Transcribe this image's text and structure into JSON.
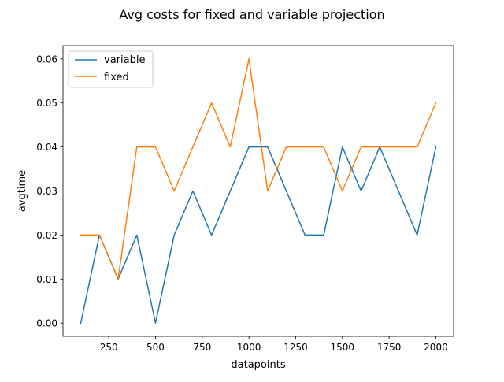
{
  "chart_data": {
    "type": "line",
    "title": "Avg costs for fixed and variable projection",
    "xlabel": "datapoints",
    "ylabel": "avgtime",
    "xlim": [
      5,
      2095
    ],
    "ylim": [
      -0.003,
      0.063
    ],
    "xticks": [
      250,
      500,
      750,
      1000,
      1250,
      1500,
      1750,
      2000
    ],
    "xtick_labels": [
      "250",
      "500",
      "750",
      "1000",
      "1250",
      "1500",
      "1750",
      "2000"
    ],
    "yticks": [
      0.0,
      0.01,
      0.02,
      0.03,
      0.04,
      0.05,
      0.06
    ],
    "ytick_labels": [
      "0.00",
      "0.01",
      "0.02",
      "0.03",
      "0.04",
      "0.05",
      "0.06"
    ],
    "grid": false,
    "legend_position": "top-left",
    "x": [
      100,
      200,
      300,
      400,
      500,
      600,
      700,
      800,
      900,
      1000,
      1100,
      1200,
      1300,
      1400,
      1500,
      1600,
      1700,
      1800,
      1900,
      2000
    ],
    "series": [
      {
        "name": "variable",
        "color": "#1f77b4",
        "values": [
          0.0,
          0.02,
          0.01,
          0.02,
          0.0,
          0.02,
          0.03,
          0.02,
          0.03,
          0.04,
          0.04,
          0.03,
          0.02,
          0.02,
          0.04,
          0.03,
          0.04,
          0.03,
          0.02,
          0.04
        ]
      },
      {
        "name": "fixed",
        "color": "#ff7f0e",
        "values": [
          0.02,
          0.02,
          0.01,
          0.04,
          0.04,
          0.03,
          0.04,
          0.05,
          0.04,
          0.06,
          0.03,
          0.04,
          0.04,
          0.04,
          0.03,
          0.04,
          0.04,
          0.04,
          0.04,
          0.05
        ]
      }
    ]
  }
}
